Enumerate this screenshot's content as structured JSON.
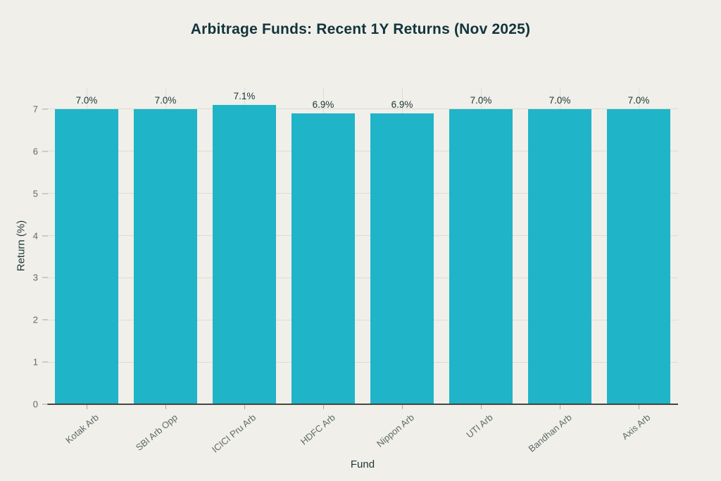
{
  "title": "Arbitrage Funds: Recent 1Y Returns (Nov 2025)",
  "chart_data": {
    "type": "bar",
    "categories": [
      "Kotak Arb",
      "SBI Arb Opp",
      "ICICI Pru Arb",
      "HDFC Arb",
      "Nippon Arb",
      "UTI Arb",
      "Bandhan Arb",
      "Axis Arb"
    ],
    "values": [
      7.0,
      7.0,
      7.1,
      6.9,
      6.9,
      7.0,
      7.0,
      7.0
    ],
    "value_labels": [
      "7.0%",
      "7.0%",
      "7.1%",
      "6.9%",
      "6.9%",
      "7.0%",
      "7.0%",
      "7.0%"
    ],
    "title": "Arbitrage Funds: Recent 1Y Returns (Nov 2025)",
    "xlabel": "Fund",
    "ylabel": "Return (%)",
    "yticks": [
      0,
      1,
      2,
      3,
      4,
      5,
      6,
      7
    ],
    "ylim": [
      0,
      7.5
    ],
    "grid": true,
    "legend_position": "none",
    "colors": {
      "bar": "#1FB4C8",
      "background": "#F0EFE9",
      "title_text": "#12343C",
      "axis_title_text": "#1E3538",
      "tick_label_text": "#5E6A6A",
      "value_label_text": "#1E3538",
      "gridline": "#DCDCD3",
      "baseline": "#45453F"
    }
  }
}
